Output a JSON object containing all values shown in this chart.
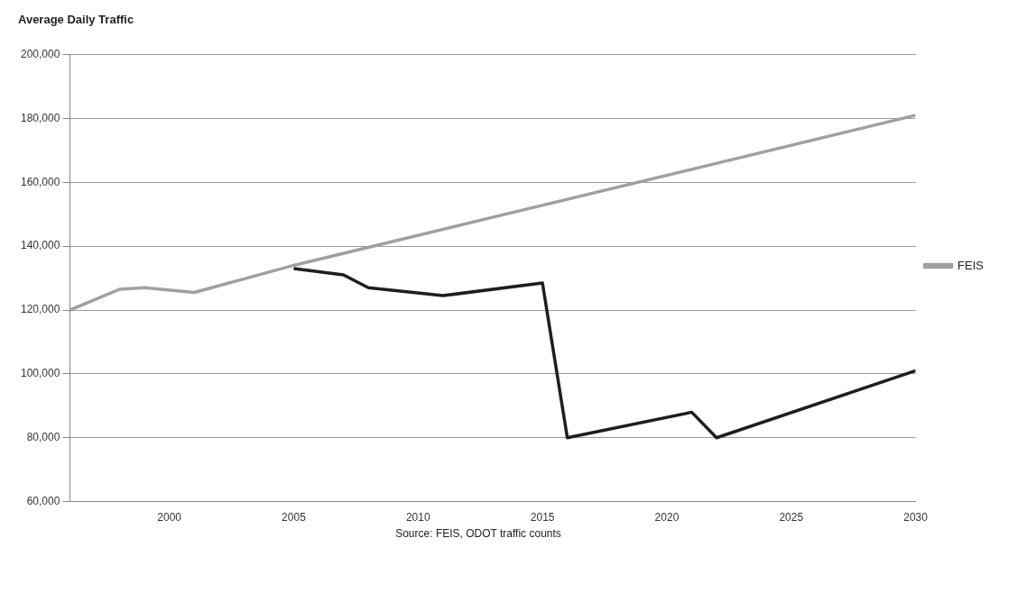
{
  "chart_data": {
    "type": "line",
    "title": "Average Daily Traffic",
    "annotations": [
      "Source:  FEIS, ODOT traffic counts"
    ],
    "xlim": [
      1996,
      2030
    ],
    "xticks": [
      2000,
      2005,
      2010,
      2015,
      2020,
      2025,
      2030
    ],
    "ylim": [
      60000,
      200000
    ],
    "yticks": [
      {
        "value": 60000,
        "label": "60,000"
      },
      {
        "value": 80000,
        "label": "80,000"
      },
      {
        "value": 100000,
        "label": "100,000"
      },
      {
        "value": 120000,
        "label": "120,000"
      },
      {
        "value": 140000,
        "label": "140,000"
      },
      {
        "value": 160000,
        "label": "160,000"
      },
      {
        "value": 180000,
        "label": "180,000"
      },
      {
        "value": 200000,
        "label": "200,000"
      }
    ],
    "grid": "y",
    "legend": "right",
    "marker": "none",
    "line_style": "solid",
    "series": [
      {
        "color": "#1e1e1e",
        "x": [
          2005,
          2007,
          2008,
          2011,
          2015,
          2016,
          2021,
          2022,
          2030
        ],
        "values": [
          133000,
          131000,
          127000,
          124500,
          128500,
          80000,
          88000,
          80000,
          101000
        ]
      },
      {
        "name": "FEIS",
        "color": "#a0a0a0",
        "x": [
          1996,
          1998,
          1999,
          2001,
          2005,
          2030
        ],
        "values": [
          120000,
          126500,
          127000,
          125500,
          134000,
          181000
        ]
      }
    ]
  }
}
